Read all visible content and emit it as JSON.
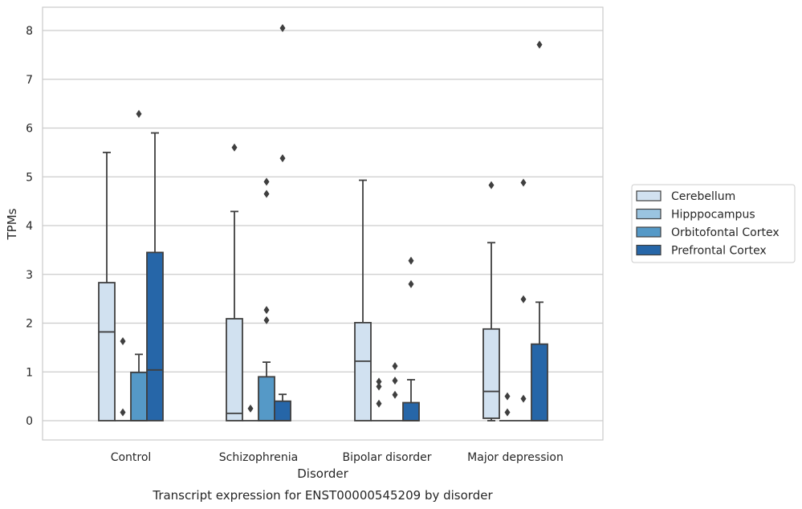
{
  "chart_data": {
    "type": "box",
    "caption": "Transcript expression for ENST00000545209 by disorder",
    "xlabel": "Disorder",
    "ylabel": "TPMs",
    "ylim": [
      -0.4,
      8.5
    ],
    "yticks": [
      0,
      1,
      2,
      3,
      4,
      5,
      6,
      7,
      8
    ],
    "grid": true,
    "legend_position": "right",
    "categories": [
      "Control",
      "Schizophrenia",
      "Bipolar disorder",
      "Major depression"
    ],
    "series": [
      {
        "name": "Cerebellum",
        "color": "#d1e1f0",
        "boxes": [
          {
            "whislo": 0,
            "q1": 0,
            "med": 1.82,
            "q3": 2.83,
            "whishi": 5.5,
            "fliers": []
          },
          {
            "whislo": 0,
            "q1": 0,
            "med": 0.15,
            "q3": 2.09,
            "whishi": 4.29,
            "fliers": [
              5.6
            ]
          },
          {
            "whislo": 0,
            "q1": 0,
            "med": 1.22,
            "q3": 2.01,
            "whishi": 4.93,
            "fliers": []
          },
          {
            "whislo": 0.0,
            "q1": 0.05,
            "med": 0.6,
            "q3": 1.88,
            "whishi": 3.65,
            "fliers": [
              4.83
            ]
          }
        ]
      },
      {
        "name": "Hipppocampus",
        "color": "#9ac4e0",
        "boxes": [
          {
            "whislo": 0,
            "q1": 0,
            "med": 0,
            "q3": 0,
            "whishi": 0,
            "fliers": [
              1.63,
              0.17
            ]
          },
          {
            "whislo": 0,
            "q1": 0,
            "med": 0,
            "q3": 0,
            "whishi": 0,
            "fliers": [
              0.25
            ]
          },
          {
            "whislo": 0,
            "q1": 0,
            "med": 0,
            "q3": 0,
            "whishi": 0,
            "fliers": [
              0.8,
              0.7,
              0.35
            ]
          },
          {
            "whislo": 0,
            "q1": 0,
            "med": 0,
            "q3": 0,
            "whishi": 0,
            "fliers": [
              0.5,
              0.17
            ]
          }
        ]
      },
      {
        "name": "Orbitofontal Cortex",
        "color": "#5599c7",
        "boxes": [
          {
            "whislo": 0,
            "q1": 0,
            "med": 0,
            "q3": 0.99,
            "whishi": 1.36,
            "fliers": [
              6.29
            ]
          },
          {
            "whislo": 0,
            "q1": 0,
            "med": 0,
            "q3": 0.9,
            "whishi": 1.2,
            "fliers": [
              4.9,
              4.65,
              2.27,
              2.06
            ]
          },
          {
            "whislo": 0,
            "q1": 0,
            "med": 0,
            "q3": 0,
            "whishi": 0,
            "fliers": [
              1.12,
              0.82,
              0.53
            ]
          },
          {
            "whislo": 0,
            "q1": 0,
            "med": 0,
            "q3": 0,
            "whishi": 0,
            "fliers": [
              4.88,
              2.49,
              0.45
            ]
          }
        ]
      },
      {
        "name": "Prefrontal Cortex",
        "color": "#2666a8",
        "boxes": [
          {
            "whislo": 0,
            "q1": 0,
            "med": 1.04,
            "q3": 3.45,
            "whishi": 5.9,
            "fliers": []
          },
          {
            "whislo": 0,
            "q1": 0,
            "med": 0,
            "q3": 0.4,
            "whishi": 0.54,
            "fliers": [
              8.05,
              5.38
            ]
          },
          {
            "whislo": 0,
            "q1": 0,
            "med": 0,
            "q3": 0.37,
            "whishi": 0.84,
            "fliers": [
              3.28,
              2.8
            ]
          },
          {
            "whislo": 0,
            "q1": 0,
            "med": 0,
            "q3": 1.57,
            "whishi": 2.43,
            "fliers": [
              7.71
            ]
          }
        ]
      }
    ]
  }
}
